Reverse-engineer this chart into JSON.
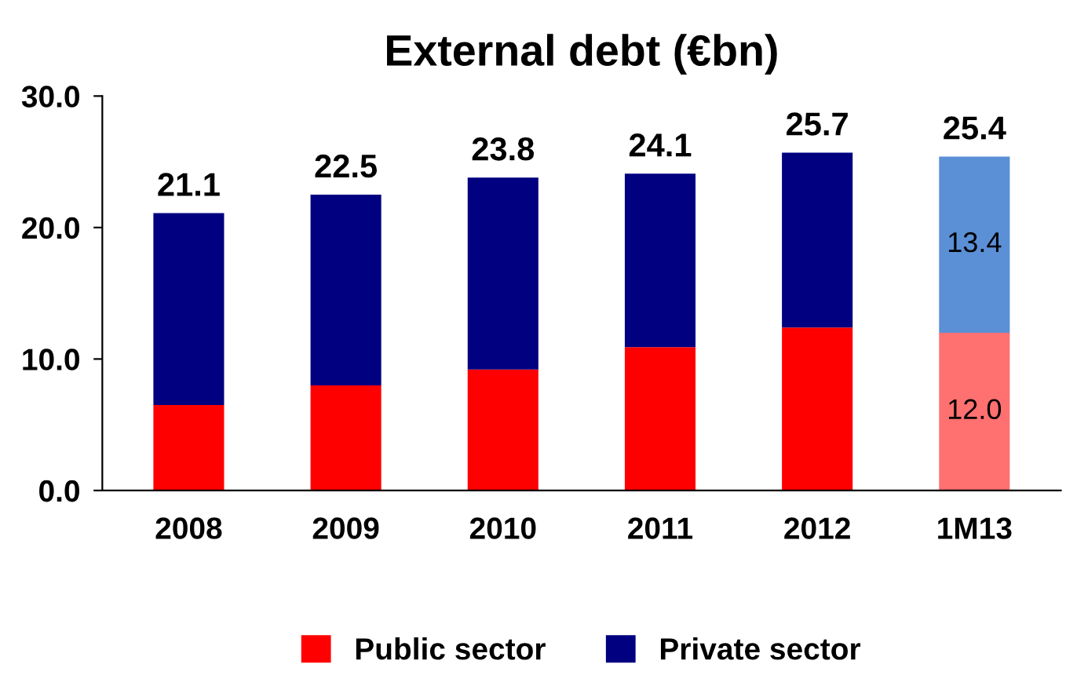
{
  "chart_data": {
    "type": "bar",
    "title": "External debt (€bn)",
    "stacked": true,
    "categories": [
      "2008",
      "2009",
      "2010",
      "2011",
      "2012",
      "1M13"
    ],
    "series": [
      {
        "name": "Public sector",
        "color": "#ff0000",
        "colors": [
          "#ff0000",
          "#ff0000",
          "#ff0000",
          "#ff0000",
          "#ff0000",
          "#ff7070"
        ],
        "values": [
          6.5,
          8.0,
          9.2,
          10.9,
          12.4,
          12.0
        ],
        "value_labels": [
          null,
          null,
          null,
          null,
          null,
          "12.0"
        ]
      },
      {
        "name": "Private sector",
        "color": "#000080",
        "colors": [
          "#000080",
          "#000080",
          "#000080",
          "#000080",
          "#000080",
          "#5b8fd6"
        ],
        "values": [
          14.6,
          14.5,
          14.6,
          13.2,
          13.3,
          13.4
        ],
        "value_labels": [
          null,
          null,
          null,
          null,
          null,
          "13.4"
        ]
      }
    ],
    "totals": [
      "21.1",
      "22.5",
      "23.8",
      "24.1",
      "25.7",
      "25.4"
    ],
    "ylim": [
      0,
      30
    ],
    "yticks": [
      {
        "value": 0,
        "label": "0.0"
      },
      {
        "value": 10,
        "label": "10.0"
      },
      {
        "value": 20,
        "label": "20.0"
      },
      {
        "value": 30,
        "label": "30.0"
      }
    ],
    "grid": false,
    "legend": "bottom"
  }
}
